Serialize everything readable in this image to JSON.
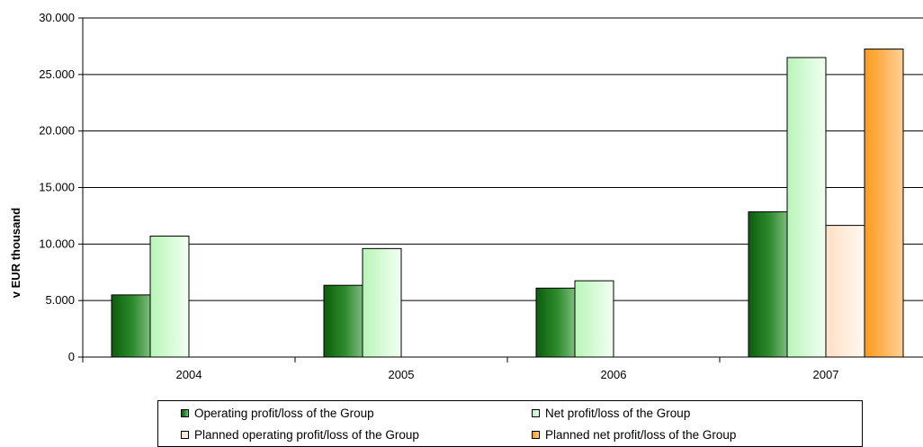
{
  "chart_data": {
    "type": "bar",
    "title": "",
    "xlabel": "",
    "ylabel": "v EUR thousand",
    "ylim": [
      0,
      30000
    ],
    "yticks": [
      0,
      5000,
      10000,
      15000,
      20000,
      25000,
      30000
    ],
    "ytick_labels": [
      "0",
      "5.000",
      "10.000",
      "15.000",
      "20.000",
      "25.000",
      "30.000"
    ],
    "categories": [
      "2004",
      "2005",
      "2006",
      "2007"
    ],
    "grid": "horizontal",
    "legend_position": "bottom",
    "series": [
      {
        "name": "Operating profit/loss of the Group",
        "values": [
          5500,
          6350,
          6100,
          12850
        ],
        "color": "#2e8b2e"
      },
      {
        "name": "Net profit/loss of the Group",
        "values": [
          10700,
          9600,
          6750,
          26500
        ],
        "color": "#ccffcc"
      },
      {
        "name": "Planned operating profit/loss of the Group",
        "values": [
          null,
          null,
          null,
          11650
        ],
        "color": "#ffe5cc"
      },
      {
        "name": "Planned net profit/loss of the Group",
        "values": [
          null,
          null,
          null,
          27250
        ],
        "color": "#ffa733"
      }
    ]
  }
}
